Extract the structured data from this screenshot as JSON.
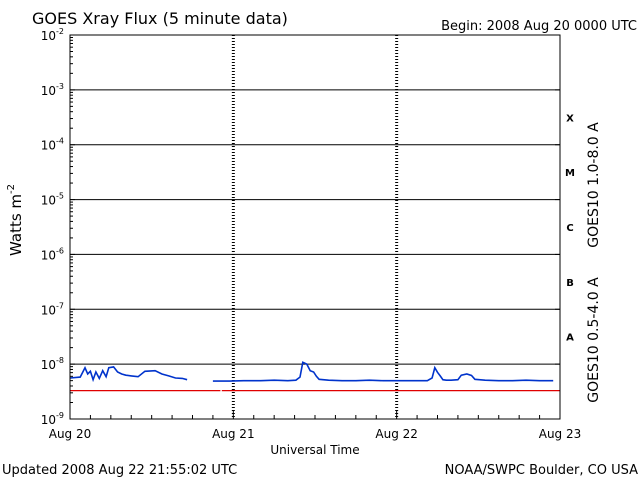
{
  "chart_data": {
    "type": "line",
    "title": "GOES Xray Flux (5 minute data)",
    "begin_label": "Begin:  2008 Aug 20 0000 UTC",
    "xlabel": "Universal Time",
    "ylabel": "Watts m",
    "ylabel_superscript": "-2",
    "yscale": "log",
    "ylim": [
      1e-09,
      0.01
    ],
    "xlim": [
      0,
      72
    ],
    "x_unit": "hours since 2008 Aug 20 0000 UTC",
    "y_ticks": [
      {
        "base": "10",
        "exp": "-2",
        "value": 0.01
      },
      {
        "base": "10",
        "exp": "-3",
        "value": 0.001
      },
      {
        "base": "10",
        "exp": "-4",
        "value": 0.0001
      },
      {
        "base": "10",
        "exp": "-5",
        "value": 1e-05
      },
      {
        "base": "10",
        "exp": "-6",
        "value": 1e-06
      },
      {
        "base": "10",
        "exp": "-7",
        "value": 1e-07
      },
      {
        "base": "10",
        "exp": "-8",
        "value": 1e-08
      },
      {
        "base": "10",
        "exp": "-9",
        "value": 1e-09
      }
    ],
    "x_ticks": [
      {
        "label": "Aug 20",
        "value": 0
      },
      {
        "label": "Aug 21",
        "value": 24
      },
      {
        "label": "Aug 22",
        "value": 48
      },
      {
        "label": "Aug 23",
        "value": 72
      }
    ],
    "flare_classes": [
      {
        "label": "X",
        "lower": 0.0001,
        "upper": 0.001
      },
      {
        "label": "M",
        "lower": 1e-05,
        "upper": 0.0001
      },
      {
        "label": "C",
        "lower": 1e-06,
        "upper": 1e-05
      },
      {
        "label": "B",
        "lower": 1e-07,
        "upper": 1e-06
      },
      {
        "label": "A",
        "lower": 1e-08,
        "upper": 1e-07
      }
    ],
    "series": [
      {
        "name": "GOES10 1.0-8.0 A",
        "color": "#e00000",
        "segments": [
          [
            [
              0,
              3.3e-09
            ],
            [
              22.1,
              3.3e-09
            ]
          ],
          [
            [
              22.3,
              3.3e-09
            ],
            [
              72,
              3.3e-09
            ]
          ]
        ]
      },
      {
        "name": "GOES10 0.5-4.0 A",
        "color": "#0033cc",
        "segments": [
          [
            [
              0,
              5.6e-09
            ],
            [
              1.5,
              5.8e-09
            ],
            [
              2.2,
              8.6e-09
            ],
            [
              2.6,
              6.6e-09
            ],
            [
              3.0,
              7.4e-09
            ],
            [
              3.4,
              5.2e-09
            ],
            [
              3.8,
              7.2e-09
            ],
            [
              4.3,
              5.5e-09
            ],
            [
              4.8,
              7.6e-09
            ],
            [
              5.3,
              5.9e-09
            ],
            [
              5.7,
              8.6e-09
            ],
            [
              6.4,
              8.9e-09
            ],
            [
              7.0,
              7.2e-09
            ],
            [
              7.6,
              6.6e-09
            ],
            [
              8.2,
              6.3e-09
            ],
            [
              9.0,
              6.1e-09
            ],
            [
              10.0,
              5.9e-09
            ],
            [
              11.0,
              7.4e-09
            ],
            [
              12.5,
              7.6e-09
            ],
            [
              13.5,
              6.6e-09
            ],
            [
              14.5,
              6.1e-09
            ],
            [
              15.5,
              5.6e-09
            ],
            [
              16.5,
              5.5e-09
            ],
            [
              17.2,
              5.2e-09
            ]
          ],
          [
            [
              21.0,
              4.9e-09
            ],
            [
              23.5,
              4.9e-09
            ],
            [
              25.5,
              5e-09
            ],
            [
              28.0,
              5e-09
            ],
            [
              30.0,
              5.1e-09
            ],
            [
              32.0,
              5e-09
            ],
            [
              33.2,
              5.1e-09
            ],
            [
              33.8,
              5.8e-09
            ],
            [
              34.2,
              1.08e-08
            ],
            [
              34.8,
              1e-08
            ],
            [
              35.3,
              7.6e-09
            ],
            [
              35.8,
              7.2e-09
            ],
            [
              36.2,
              6e-09
            ],
            [
              36.6,
              5.3e-09
            ],
            [
              38.0,
              5.1e-09
            ],
            [
              40.0,
              5e-09
            ],
            [
              42.0,
              5e-09
            ],
            [
              44.0,
              5.1e-09
            ],
            [
              46.0,
              5e-09
            ],
            [
              48.0,
              5e-09
            ],
            [
              50.0,
              5e-09
            ],
            [
              52.5,
              5e-09
            ],
            [
              53.2,
              5.6e-09
            ],
            [
              53.6,
              8.6e-09
            ],
            [
              54.0,
              7.1e-09
            ],
            [
              54.4,
              6.1e-09
            ],
            [
              54.8,
              5.2e-09
            ],
            [
              55.3,
              5.1e-09
            ],
            [
              56.0,
              5.1e-09
            ],
            [
              57.0,
              5.2e-09
            ],
            [
              57.5,
              6.3e-09
            ],
            [
              58.3,
              6.6e-09
            ],
            [
              59.0,
              6.2e-09
            ],
            [
              59.5,
              5.3e-09
            ],
            [
              61.0,
              5.1e-09
            ],
            [
              63.0,
              5e-09
            ],
            [
              65.0,
              5e-09
            ],
            [
              67.0,
              5.1e-09
            ],
            [
              69.0,
              5e-09
            ],
            [
              71.0,
              5e-09
            ]
          ]
        ]
      }
    ],
    "grid": "horizontal lines at each decade; dashed vertical lines at day boundaries",
    "footer_left": "Updated 2008 Aug 22 21:55:02 UTC",
    "footer_right": "NOAA/SWPC Boulder, CO USA"
  }
}
